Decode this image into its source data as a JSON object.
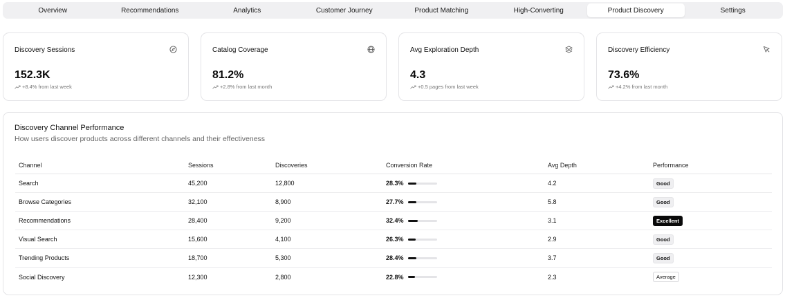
{
  "tabs": [
    {
      "label": "Overview",
      "active": false
    },
    {
      "label": "Recommendations",
      "active": false
    },
    {
      "label": "Analytics",
      "active": false
    },
    {
      "label": "Customer Journey",
      "active": false
    },
    {
      "label": "Product Matching",
      "active": false
    },
    {
      "label": "High-Converting",
      "active": false
    },
    {
      "label": "Product Discovery",
      "active": true
    },
    {
      "label": "Settings",
      "active": false
    }
  ],
  "stats": [
    {
      "title": "Discovery Sessions",
      "value": "152.3K",
      "change": "+8.4% from last week",
      "icon": "compass-icon"
    },
    {
      "title": "Catalog Coverage",
      "value": "81.2%",
      "change": "+2.8% from last month",
      "icon": "globe-icon"
    },
    {
      "title": "Avg Exploration Depth",
      "value": "4.3",
      "change": "+0.5 pages from last week",
      "icon": "layers-icon"
    },
    {
      "title": "Discovery Efficiency",
      "value": "73.6%",
      "change": "+4.2% from last month",
      "icon": "cursor-icon"
    }
  ],
  "channel_table": {
    "title": "Discovery Channel Performance",
    "subtitle": "How users discover products across different channels and their effectiveness",
    "headers": [
      "Channel",
      "Sessions",
      "Discoveries",
      "Conversion Rate",
      "Avg Depth",
      "Performance"
    ],
    "rows": [
      {
        "channel": "Search",
        "sessions": "45,200",
        "discoveries": "12,800",
        "rate": "28.3%",
        "rate_value": 28.3,
        "depth": "4.2",
        "performance": "Good"
      },
      {
        "channel": "Browse Categories",
        "sessions": "32,100",
        "discoveries": "8,900",
        "rate": "27.7%",
        "rate_value": 27.7,
        "depth": "5.8",
        "performance": "Good"
      },
      {
        "channel": "Recommendations",
        "sessions": "28,400",
        "discoveries": "9,200",
        "rate": "32.4%",
        "rate_value": 32.4,
        "depth": "3.1",
        "performance": "Excellent"
      },
      {
        "channel": "Visual Search",
        "sessions": "15,600",
        "discoveries": "4,100",
        "rate": "26.3%",
        "rate_value": 26.3,
        "depth": "2.9",
        "performance": "Good"
      },
      {
        "channel": "Trending Products",
        "sessions": "18,700",
        "discoveries": "5,300",
        "rate": "28.4%",
        "rate_value": 28.4,
        "depth": "3.7",
        "performance": "Good"
      },
      {
        "channel": "Social Discovery",
        "sessions": "12,300",
        "discoveries": "2,800",
        "rate": "22.8%",
        "rate_value": 22.8,
        "depth": "2.3",
        "performance": "Average"
      }
    ]
  }
}
